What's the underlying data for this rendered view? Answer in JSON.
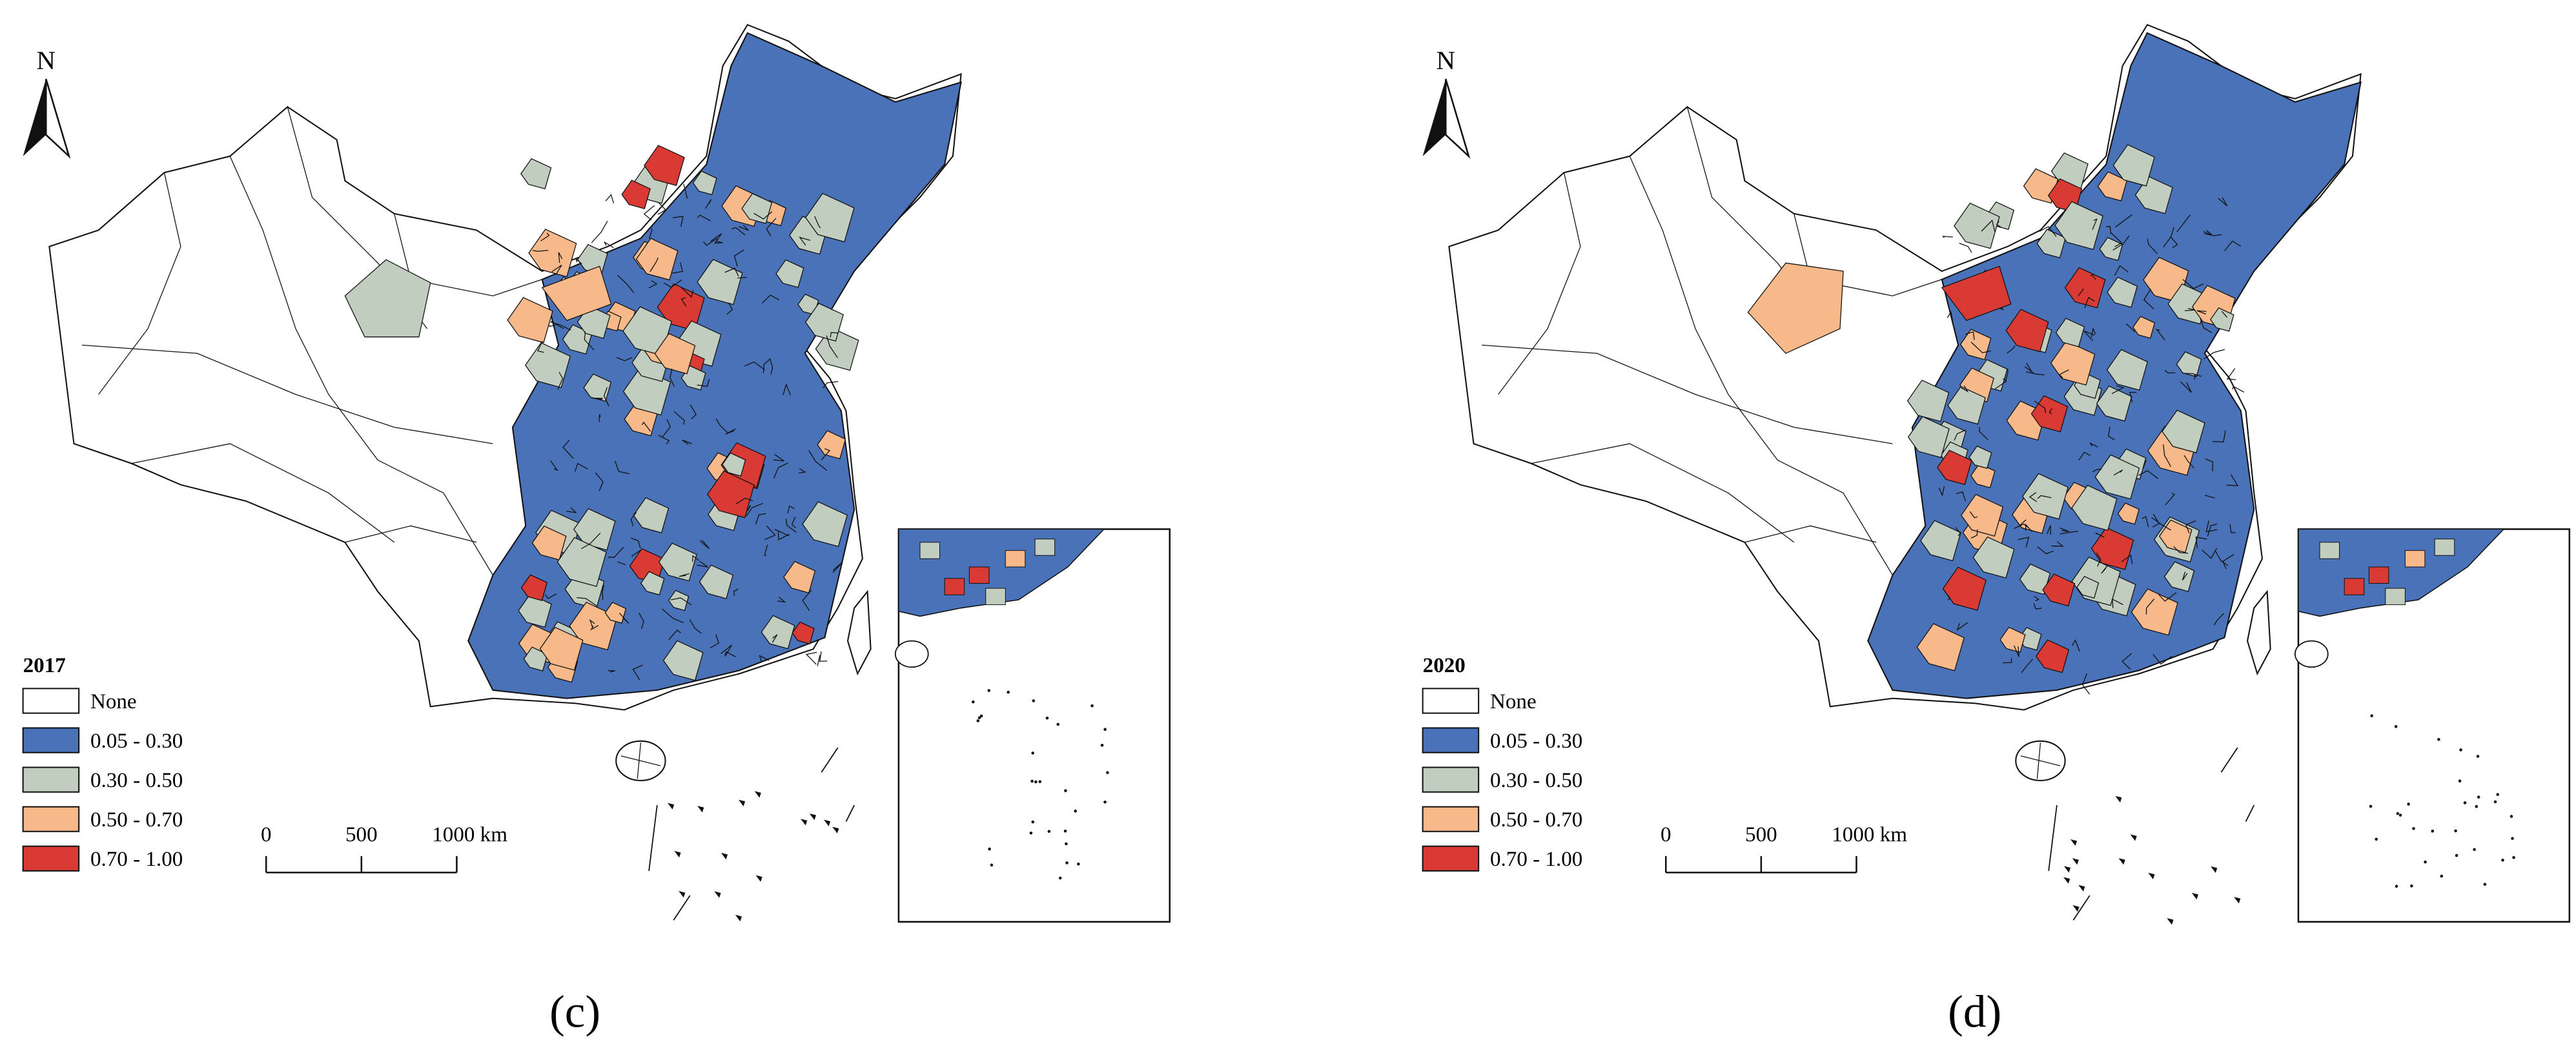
{
  "panels": [
    {
      "year": "2017",
      "caption": "(c)",
      "north": "N",
      "legend": [
        {
          "label": "None",
          "color": "#ffffff"
        },
        {
          "label": "0.05 - 0.30",
          "color": "#4a72b8"
        },
        {
          "label": "0.30 - 0.50",
          "color": "#c1cdbf"
        },
        {
          "label": "0.50 - 0.70",
          "color": "#f7b98a"
        },
        {
          "label": "0.70 - 1.00",
          "color": "#d93a34"
        }
      ],
      "scale_ticks": [
        "0",
        "500",
        "1000 km"
      ]
    },
    {
      "year": "2020",
      "caption": "(d)",
      "north": "N",
      "legend": [
        {
          "label": "None",
          "color": "#ffffff"
        },
        {
          "label": "0.05 - 0.30",
          "color": "#4a72b8"
        },
        {
          "label": "0.30 - 0.50",
          "color": "#c1cdbf"
        },
        {
          "label": "0.50 - 0.70",
          "color": "#f7b98a"
        },
        {
          "label": "0.70 - 1.00",
          "color": "#d93a34"
        }
      ],
      "scale_ticks": [
        "0",
        "500",
        "1000 km"
      ]
    }
  ]
}
